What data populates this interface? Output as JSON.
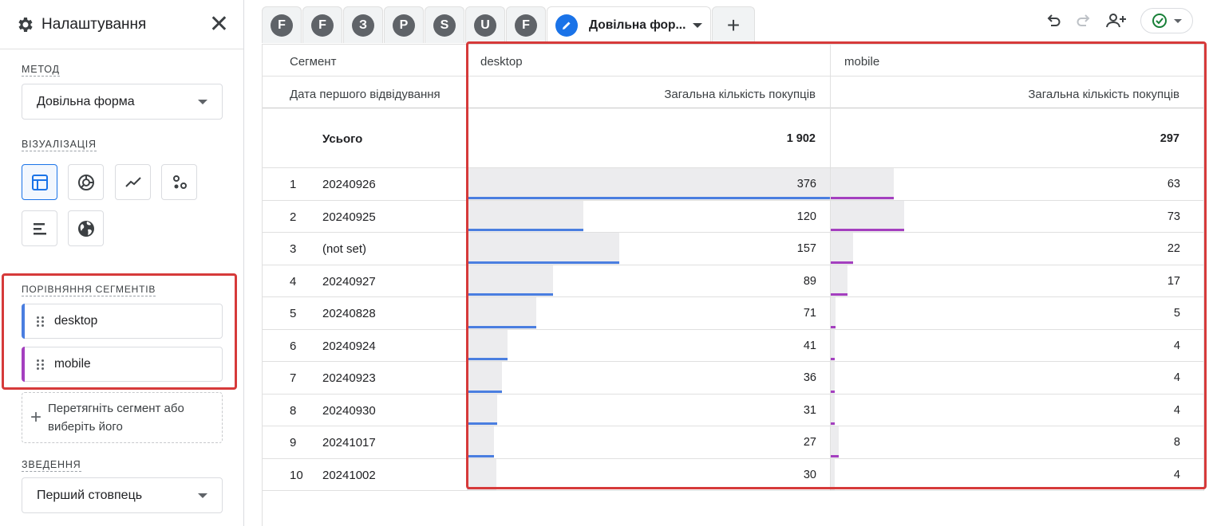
{
  "settings": {
    "title": "Налаштування",
    "method_label": "МЕТОД",
    "method_value": "Довільна форма",
    "viz_label": "ВІЗУАЛІЗАЦІЯ",
    "compare_label": "ПОРІВНЯННЯ СЕГМЕНТІВ",
    "segments": [
      "desktop",
      "mobile"
    ],
    "drop_hint_line1": "Перетягніть сегмент або",
    "drop_hint_line2": "виберіть його",
    "pivot_label": "ЗВЕДЕННЯ",
    "pivot_value": "Перший стовпець"
  },
  "tabs": {
    "letters": [
      "F",
      "F",
      "З",
      "P",
      "S",
      "U",
      "F"
    ],
    "active_label": "Довільна фор..."
  },
  "table": {
    "segment_header": "Сегмент",
    "dimension_header": "Дата першого відвідування",
    "segment_cols": [
      "desktop",
      "mobile"
    ],
    "metric_header": "Загальна кількість покупців",
    "totals_label": "Усього",
    "totals": [
      "1 902",
      "297"
    ],
    "rows": [
      {
        "rank": "1",
        "date": "20240926",
        "desktop": 376,
        "mobile": 63
      },
      {
        "rank": "2",
        "date": "20240925",
        "desktop": 120,
        "mobile": 73
      },
      {
        "rank": "3",
        "date": "(not set)",
        "desktop": 157,
        "mobile": 22
      },
      {
        "rank": "4",
        "date": "20240927",
        "desktop": 89,
        "mobile": 17
      },
      {
        "rank": "5",
        "date": "20240828",
        "desktop": 71,
        "mobile": 5
      },
      {
        "rank": "6",
        "date": "20240924",
        "desktop": 41,
        "mobile": 4
      },
      {
        "rank": "7",
        "date": "20240923",
        "desktop": 36,
        "mobile": 4
      },
      {
        "rank": "8",
        "date": "20240930",
        "desktop": 31,
        "mobile": 4
      },
      {
        "rank": "9",
        "date": "20241017",
        "desktop": 27,
        "mobile": 8
      },
      {
        "rank": "10",
        "date": "20241002",
        "desktop": 30,
        "mobile": 4
      }
    ]
  },
  "colors": {
    "desktop": "#4a7ee0",
    "mobile": "#a43fbf",
    "highlight": "#d63a3a",
    "accent": "#1a73e8"
  }
}
